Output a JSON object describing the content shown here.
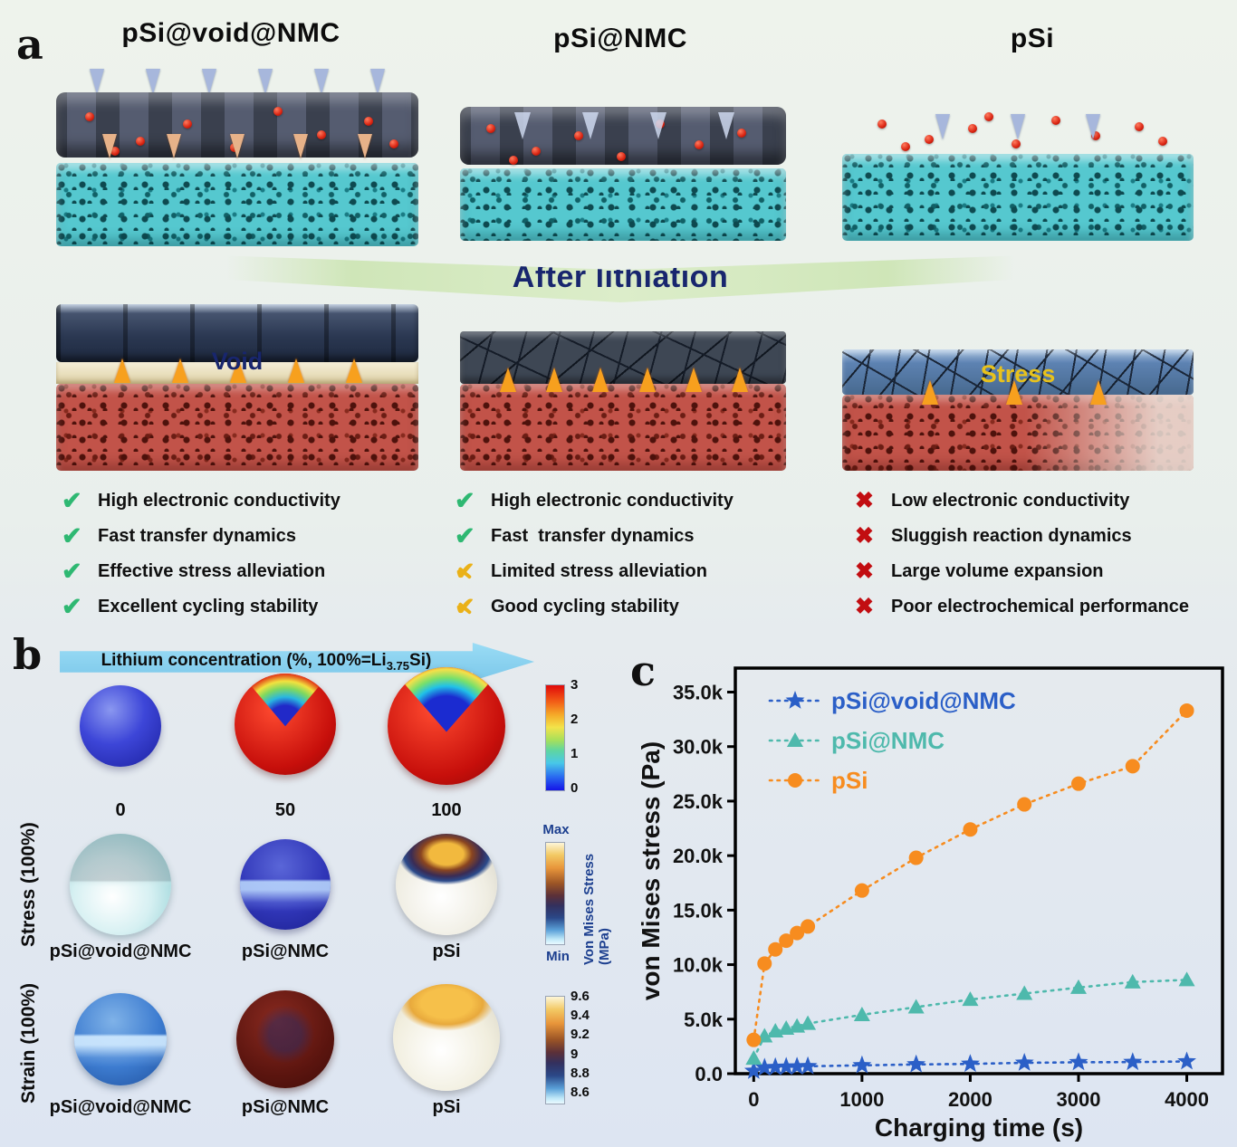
{
  "panel_a": {
    "label": "a",
    "headers": [
      "pSi@void@NMC",
      "pSi@NMC",
      "pSi"
    ],
    "banner": "After lithiation",
    "void_label": "Void",
    "stress_label": "Stress",
    "lists": [
      {
        "items": [
          {
            "icon": "check",
            "text": "High electronic conductivity"
          },
          {
            "icon": "check",
            "text": "Fast transfer dynamics"
          },
          {
            "icon": "check",
            "text": "Effective stress alleviation"
          },
          {
            "icon": "check",
            "text": "Excellent cycling stability"
          }
        ]
      },
      {
        "items": [
          {
            "icon": "check",
            "text": "High electronic conductivity"
          },
          {
            "icon": "check",
            "text": "Fast  transfer dynamics"
          },
          {
            "icon": "limited-check",
            "text": "Limited stress alleviation"
          },
          {
            "icon": "limited-check",
            "text": "Good cycling stability"
          }
        ]
      },
      {
        "items": [
          {
            "icon": "cross",
            "text": "Low electronic conductivity"
          },
          {
            "icon": "cross",
            "text": "Sluggish reaction dynamics"
          },
          {
            "icon": "cross",
            "text": "Large volume expansion"
          },
          {
            "icon": "cross",
            "text": "Poor electrochemical performance"
          }
        ]
      }
    ]
  },
  "panel_b": {
    "label": "b",
    "arrow_prefix": "Lithium concentration (%, 100%=Li",
    "arrow_sub": "3.75",
    "arrow_suffix": "Si)",
    "row1_labels": [
      "0",
      "50",
      "100"
    ],
    "colorbar1_ticks": [
      "3",
      "2",
      "1",
      "0"
    ],
    "stress_row_label": "Stress (100%)",
    "strain_row_label": "Strain (100%)",
    "row2_labels": [
      "pSi@void@NMC",
      "pSi@NMC",
      "pSi"
    ],
    "row3_labels": [
      "pSi@void@NMC",
      "pSi@NMC",
      "pSi"
    ],
    "colorbar2_max": "Max",
    "colorbar2_min": "Min",
    "colorbar2_title": "Von Mises Stress (MPa)",
    "colorbar3_ticks": [
      "9.6",
      "9.4",
      "9.2",
      "9",
      "8.8",
      "8.6"
    ]
  },
  "panel_c": {
    "label": "c"
  },
  "chart_data": {
    "type": "line",
    "title": "",
    "xlabel": "Charging time (s)",
    "ylabel": "von Mises stress (Pa)",
    "xlim": [
      -170,
      4330
    ],
    "ylim": [
      0,
      37200
    ],
    "xticks": [
      0,
      1000,
      2000,
      3000,
      4000
    ],
    "yticks": [
      0,
      5000,
      10000,
      15000,
      20000,
      25000,
      30000,
      35000
    ],
    "ytick_labels": [
      "0.0",
      "5.0k",
      "10.0k",
      "15.0k",
      "20.0k",
      "25.0k",
      "30.0k",
      "35.0k"
    ],
    "grid": false,
    "line_style": "dotted",
    "legend_position": "top-left",
    "x": [
      0,
      100,
      200,
      300,
      400,
      500,
      1000,
      1500,
      2000,
      2500,
      3000,
      3500,
      4000
    ],
    "series": [
      {
        "name": "pSi@void@NMC",
        "marker": "star",
        "color": "#2b5fc7",
        "values": [
          250,
          550,
          600,
          630,
          650,
          680,
          760,
          850,
          900,
          1000,
          1050,
          1060,
          1120
        ]
      },
      {
        "name": "pSi@NMC",
        "marker": "triangle",
        "color": "#4eb9ac",
        "values": [
          1400,
          3450,
          3900,
          4150,
          4350,
          4600,
          5400,
          6100,
          6800,
          7350,
          7900,
          8400,
          8600
        ]
      },
      {
        "name": "pSi",
        "marker": "circle",
        "color": "#f78c1f",
        "values": [
          3100,
          10100,
          11400,
          12200,
          12900,
          13500,
          16800,
          19800,
          22400,
          24700,
          26600,
          28200,
          33300
        ]
      }
    ]
  }
}
